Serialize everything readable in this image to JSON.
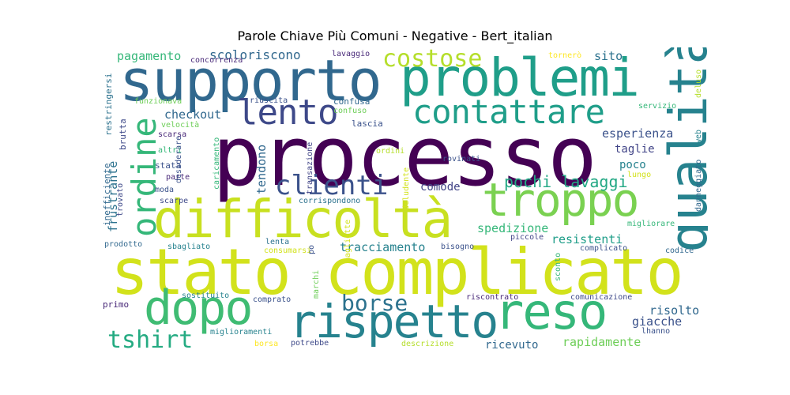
{
  "title": "Parole Chiave Più Comuni - Negative - Bert_italian",
  "palette": {
    "dark_purple": "#440154",
    "purple": "#482878",
    "indigo": "#3e4989",
    "blue": "#31688e",
    "teal": "#26828e",
    "green_teal": "#1f9e89",
    "green": "#35b779",
    "light_green": "#6ece58",
    "lime": "#b5de2b",
    "yellow": "#fde725"
  },
  "words": [
    {
      "text": "processo",
      "color": "#440154"
    },
    {
      "text": "supporto",
      "color": "#31688e"
    },
    {
      "text": "problemi",
      "color": "#1f9e89"
    },
    {
      "text": "qualità",
      "color": "#26828e"
    },
    {
      "text": "stato complicato",
      "color": "#d2e21b"
    },
    {
      "text": "difficoltà",
      "color": "#c8e020"
    },
    {
      "text": "rispetto",
      "color": "#26828e"
    },
    {
      "text": "reso",
      "color": "#35b779"
    },
    {
      "text": "dopo",
      "color": "#3fbc73"
    },
    {
      "text": "troppo",
      "color": "#7ad151"
    },
    {
      "text": "contattare",
      "color": "#1f9e89"
    },
    {
      "text": "lento",
      "color": "#3e4989"
    },
    {
      "text": "costose",
      "color": "#b5de2b"
    },
    {
      "text": "ordine",
      "color": "#35b779"
    },
    {
      "text": "clienti",
      "color": "#3b528b"
    },
    {
      "text": "tshirt",
      "color": "#25ab82"
    },
    {
      "text": "borse",
      "color": "#2c728e"
    },
    {
      "text": "pochi lavaggi",
      "color": "#22a884"
    },
    {
      "text": "scoloriscono",
      "color": "#31688e"
    },
    {
      "text": "pagamento",
      "color": "#35b779"
    },
    {
      "text": "checkout",
      "color": "#31688e"
    },
    {
      "text": "sito",
      "color": "#2c728e"
    },
    {
      "text": "esperienza",
      "color": "#3b528b"
    },
    {
      "text": "taglie",
      "color": "#414487"
    },
    {
      "text": "poco",
      "color": "#26828e"
    },
    {
      "text": "tendono",
      "color": "#31688e"
    },
    {
      "text": "comode",
      "color": "#414487"
    },
    {
      "text": "frustrante",
      "color": "#2c728e"
    },
    {
      "text": "tracciamento",
      "color": "#26828e"
    },
    {
      "text": "spedizione",
      "color": "#35b779"
    },
    {
      "text": "resistenti",
      "color": "#1f9e89"
    },
    {
      "text": "risolto",
      "color": "#31688e"
    },
    {
      "text": "giacche",
      "color": "#3b528b"
    },
    {
      "text": "rapidamente",
      "color": "#6ece58"
    },
    {
      "text": "ricevuto",
      "color": "#31688e"
    },
    {
      "text": "concorrenza",
      "color": "#482878"
    },
    {
      "text": "lavaggio",
      "color": "#482878"
    },
    {
      "text": "tornerò",
      "color": "#fde725"
    },
    {
      "text": "deluso",
      "color": "#b5de2b"
    },
    {
      "text": "servizio",
      "color": "#35b779"
    },
    {
      "text": "restringersi",
      "color": "#2c728e"
    },
    {
      "text": "funzionava",
      "color": "#6ece58"
    },
    {
      "text": "riuscita",
      "color": "#3b528b"
    },
    {
      "text": "confusa",
      "color": "#31688e"
    },
    {
      "text": "confuso",
      "color": "#6ece58"
    },
    {
      "text": "lascia",
      "color": "#3b528b"
    },
    {
      "text": "brutta",
      "color": "#3e4989"
    },
    {
      "text": "velocità",
      "color": "#6ece58"
    },
    {
      "text": "scarsa",
      "color": "#482878"
    },
    {
      "text": "altri",
      "color": "#35b779"
    },
    {
      "text": "stata",
      "color": "#3b528b"
    },
    {
      "text": "parte",
      "color": "#482878"
    },
    {
      "text": "moda",
      "color": "#3b528b"
    },
    {
      "text": "scarpe",
      "color": "#3e4989"
    },
    {
      "text": "trovato",
      "color": "#3e4989"
    },
    {
      "text": "inefficiente",
      "color": "#31688e"
    },
    {
      "text": "desiderare",
      "color": "#3b528b"
    },
    {
      "text": "caricamento",
      "color": "#35b779"
    },
    {
      "text": "transazione",
      "color": "#414487"
    },
    {
      "text": "ordini",
      "color": "#b5de2b"
    },
    {
      "text": "rovinati",
      "color": "#3b528b"
    },
    {
      "text": "deludente",
      "color": "#d2e21b"
    },
    {
      "text": "corrispondono",
      "color": "#2c728e"
    },
    {
      "text": "lungo",
      "color": "#d2e21b"
    },
    {
      "text": "danneggiato",
      "color": "#31688e"
    },
    {
      "text": "web",
      "color": "#26828e"
    },
    {
      "text": "migliorare",
      "color": "#35b779"
    },
    {
      "text": "piccole",
      "color": "#414487"
    },
    {
      "text": "prodotto",
      "color": "#31688e"
    },
    {
      "text": "sbagliato",
      "color": "#26828e"
    },
    {
      "text": "lenta",
      "color": "#2c728e"
    },
    {
      "text": "consumarsi",
      "color": "#d2e21b"
    },
    {
      "text": "po",
      "color": "#3b528b"
    },
    {
      "text": "magliette",
      "color": "#d2e21b"
    },
    {
      "text": "marchi",
      "color": "#6ece58"
    },
    {
      "text": "bisogno",
      "color": "#3b528b"
    },
    {
      "text": "complicato",
      "color": "#3b528b"
    },
    {
      "text": "codice",
      "color": "#31688e"
    },
    {
      "text": "sconto",
      "color": "#35b779"
    },
    {
      "text": "primo",
      "color": "#482878"
    },
    {
      "text": "sostituito",
      "color": "#26828e"
    },
    {
      "text": "comprato",
      "color": "#3b528b"
    },
    {
      "text": "riscontrato",
      "color": "#482878"
    },
    {
      "text": "comunicazione",
      "color": "#3e4989"
    },
    {
      "text": "miglioramenti",
      "color": "#26828e"
    },
    {
      "text": "borsa",
      "color": "#fde725"
    },
    {
      "text": "potrebbe",
      "color": "#3e4989"
    },
    {
      "text": "descrizione",
      "color": "#b5de2b"
    },
    {
      "text": "lhanno",
      "color": "#3b528b"
    }
  ]
}
